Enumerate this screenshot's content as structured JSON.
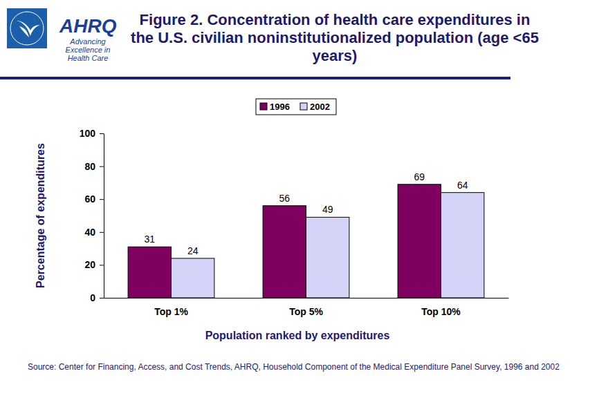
{
  "chart_data": {
    "type": "bar",
    "title": "Figure 2. Concentration of health care expenditures in the U.S. civilian noninstitutionalized population (age <65 years)",
    "logo_text": "AHRQ",
    "logo_tagline": [
      "Advancing",
      "Excellence in",
      "Health Care"
    ],
    "x_label": "Population ranked by expenditures",
    "y_label": "Percentage of expenditures",
    "source": "Source: Center for Financing, Access, and Cost Trends, AHRQ, Household Component of the Medical Expenditure Panel Survey, 1996 and 2002",
    "categories": [
      "Top 1%",
      "Top 5%",
      "Top 10%"
    ],
    "series": [
      {
        "name": "1996",
        "color": "#800060",
        "values": [
          31,
          56,
          69
        ]
      },
      {
        "name": "2002",
        "color": "#d4d4f8",
        "values": [
          24,
          49,
          64
        ]
      }
    ],
    "ylim": [
      0,
      100
    ],
    "yticks": [
      0,
      20,
      40,
      60,
      80,
      100
    ],
    "legend": "top",
    "data_labels": true,
    "grid": false
  }
}
